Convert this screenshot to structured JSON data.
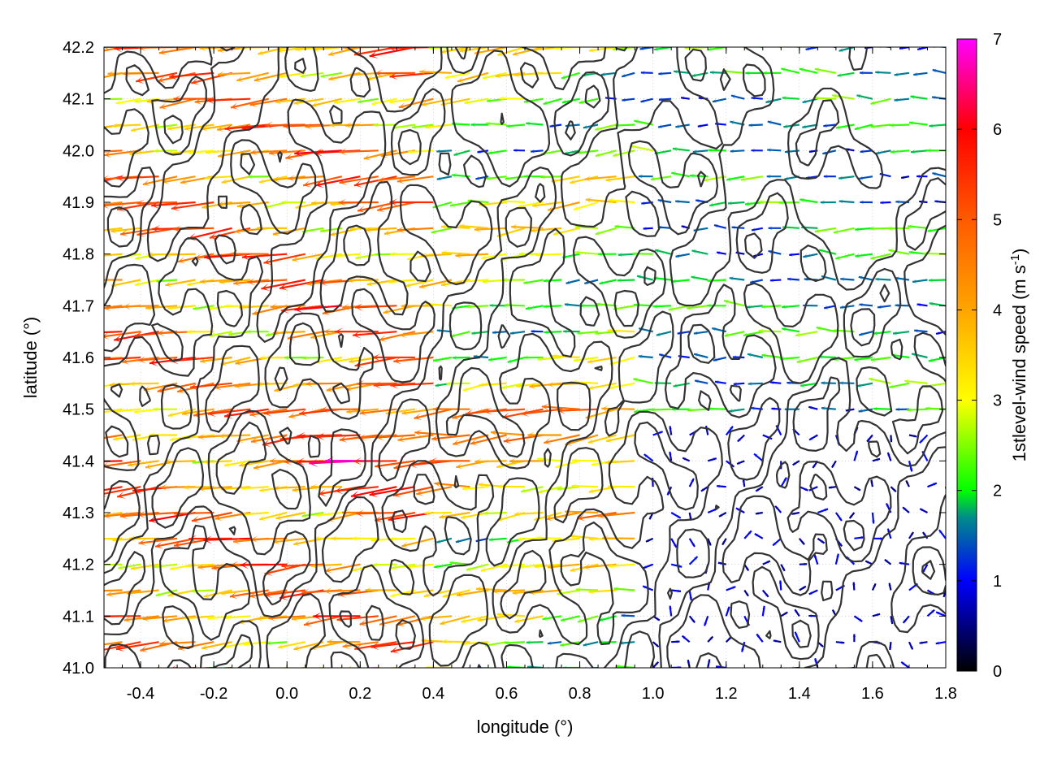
{
  "chart_data": {
    "type": "vector-field",
    "xlabel": "longitude (°)",
    "ylabel": "latitude (°)",
    "xlim": [
      -0.5,
      1.8
    ],
    "ylim": [
      41.0,
      42.2
    ],
    "x_ticks": [
      {
        "value": -0.4,
        "label": "-0.4"
      },
      {
        "value": -0.2,
        "label": "-0.2"
      },
      {
        "value": 0.0,
        "label": "0.0"
      },
      {
        "value": 0.2,
        "label": "0.2"
      },
      {
        "value": 0.4,
        "label": "0.4"
      },
      {
        "value": 0.6,
        "label": "0.6"
      },
      {
        "value": 0.8,
        "label": "0.8"
      },
      {
        "value": 1.0,
        "label": "1.0"
      },
      {
        "value": 1.2,
        "label": "1.2"
      },
      {
        "value": 1.4,
        "label": "1.4"
      },
      {
        "value": 1.6,
        "label": "1.6"
      },
      {
        "value": 1.8,
        "label": "1.8"
      }
    ],
    "y_ticks": [
      {
        "value": 41.0,
        "label": "41.0"
      },
      {
        "value": 41.1,
        "label": "41.1"
      },
      {
        "value": 41.2,
        "label": "41.2"
      },
      {
        "value": 41.3,
        "label": "41.3"
      },
      {
        "value": 41.4,
        "label": "41.4"
      },
      {
        "value": 41.5,
        "label": "41.5"
      },
      {
        "value": 41.6,
        "label": "41.6"
      },
      {
        "value": 41.7,
        "label": "41.7"
      },
      {
        "value": 41.8,
        "label": "41.8"
      },
      {
        "value": 41.9,
        "label": "41.9"
      },
      {
        "value": 42.0,
        "label": "42.0"
      },
      {
        "value": 42.1,
        "label": "42.1"
      },
      {
        "value": 42.2,
        "label": "42.2"
      }
    ],
    "grid": true,
    "colorbar": {
      "label_main": "1stlevel-wind speed (m s",
      "label_exp": "-1",
      "label_close": ")",
      "range": [
        0,
        7
      ],
      "ticks": [
        {
          "value": 0,
          "label": "0"
        },
        {
          "value": 1,
          "label": "1"
        },
        {
          "value": 2,
          "label": "2"
        },
        {
          "value": 3,
          "label": "3"
        },
        {
          "value": 4,
          "label": "4"
        },
        {
          "value": 5,
          "label": "5"
        },
        {
          "value": 6,
          "label": "6"
        },
        {
          "value": 7,
          "label": "7"
        }
      ],
      "stops": [
        {
          "value": 0,
          "color": "#000000"
        },
        {
          "value": 1,
          "color": "#0000ff"
        },
        {
          "value": 1.7,
          "color": "#008b8b"
        },
        {
          "value": 2,
          "color": "#00ff00"
        },
        {
          "value": 3,
          "color": "#ffff00"
        },
        {
          "value": 4,
          "color": "#ffa500"
        },
        {
          "value": 5,
          "color": "#ff5a00"
        },
        {
          "value": 6,
          "color": "#ff0000"
        },
        {
          "value": 7,
          "color": "#ff00ff"
        }
      ]
    },
    "vector_grid": {
      "lon_start": -0.5,
      "lon_end": 1.8,
      "lon_step": 0.05,
      "lat_start": 41.0,
      "lat_end": 42.2,
      "lat_step": 0.05
    },
    "wind_regions": [
      {
        "region": "west of 0.4°E",
        "direction": "from east (vectors point west)",
        "speed_range": [
          3.5,
          6.5
        ]
      },
      {
        "region": "0.4°E–1.0°E",
        "direction": "from east",
        "speed_range": [
          1.5,
          4.5
        ]
      },
      {
        "region": "north-east 1.2°E–1.8°E, 41.5°N–42.2°N",
        "direction": "from east",
        "speed_range": [
          1.0,
          2.5
        ]
      },
      {
        "region": "south-east 0.9°E–1.8°E, 41.0°N–41.4°N",
        "direction": "variable / calm",
        "speed_range": [
          0.1,
          1.2
        ]
      }
    ],
    "contour_color": "#333333"
  }
}
